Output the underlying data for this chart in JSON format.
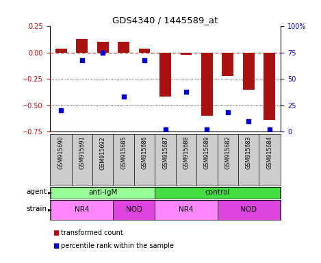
{
  "title": "GDS4340 / 1445589_at",
  "samples": [
    "GSM915690",
    "GSM915691",
    "GSM915692",
    "GSM915685",
    "GSM915686",
    "GSM915687",
    "GSM915688",
    "GSM915689",
    "GSM915682",
    "GSM915683",
    "GSM915684"
  ],
  "bar_values": [
    0.04,
    0.13,
    0.1,
    0.1,
    0.04,
    -0.42,
    -0.02,
    -0.6,
    -0.22,
    -0.35,
    -0.64
  ],
  "percentile_values": [
    20,
    68,
    75,
    33,
    68,
    2,
    38,
    2,
    18,
    10,
    2
  ],
  "bar_color": "#aa1111",
  "dot_color": "#0000cc",
  "dashed_line_color": "#cc0000",
  "ylim_left": [
    -0.75,
    0.25
  ],
  "ylim_right": [
    0,
    100
  ],
  "yticks_left": [
    -0.75,
    -0.5,
    -0.25,
    0,
    0.25
  ],
  "yticks_right": [
    0,
    25,
    50,
    75,
    100
  ],
  "ytick_labels_right": [
    "0",
    "25",
    "50",
    "75",
    "100%"
  ],
  "gridline_y": [
    -0.25,
    -0.5
  ],
  "agent_labels": [
    {
      "text": "anti-IgM",
      "start": 0,
      "end": 4,
      "color": "#99ff99"
    },
    {
      "text": "control",
      "start": 5,
      "end": 10,
      "color": "#44dd44"
    }
  ],
  "strain_labels": [
    {
      "text": "NR4",
      "start": 0,
      "end": 2,
      "color": "#ff88ff"
    },
    {
      "text": "NOD",
      "start": 3,
      "end": 4,
      "color": "#dd44dd"
    },
    {
      "text": "NR4",
      "start": 5,
      "end": 7,
      "color": "#ff88ff"
    },
    {
      "text": "NOD",
      "start": 8,
      "end": 10,
      "color": "#dd44dd"
    }
  ],
  "agent_row_label": "agent",
  "strain_row_label": "strain",
  "legend_items": [
    {
      "label": "transformed count",
      "color": "#aa1111"
    },
    {
      "label": "percentile rank within the sample",
      "color": "#0000cc"
    }
  ],
  "background_color": "#ffffff",
  "plot_bg": "#ffffff",
  "tick_label_left_color": "#cc0000",
  "tick_label_right_color": "#0000cc",
  "xlab_bg": "#cccccc"
}
